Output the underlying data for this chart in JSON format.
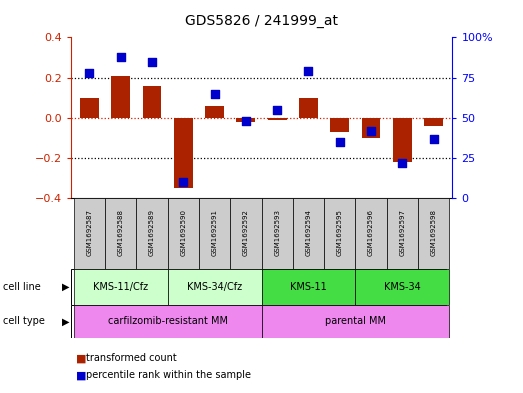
{
  "title": "GDS5826 / 241999_at",
  "samples": [
    "GSM1692587",
    "GSM1692588",
    "GSM1692589",
    "GSM1692590",
    "GSM1692591",
    "GSM1692592",
    "GSM1692593",
    "GSM1692594",
    "GSM1692595",
    "GSM1692596",
    "GSM1692597",
    "GSM1692598"
  ],
  "transformed_count": [
    0.1,
    0.21,
    0.16,
    -0.35,
    0.06,
    -0.02,
    -0.01,
    0.1,
    -0.07,
    -0.1,
    -0.22,
    -0.04
  ],
  "percentile_rank": [
    78,
    88,
    85,
    10,
    65,
    48,
    55,
    79,
    35,
    42,
    22,
    37
  ],
  "cell_line_groups": [
    {
      "label": "KMS-11/Cfz",
      "start": 0,
      "end": 3,
      "color": "#ccffcc"
    },
    {
      "label": "KMS-34/Cfz",
      "start": 3,
      "end": 6,
      "color": "#ccffcc"
    },
    {
      "label": "KMS-11",
      "start": 6,
      "end": 9,
      "color": "#44dd44"
    },
    {
      "label": "KMS-34",
      "start": 9,
      "end": 12,
      "color": "#44dd44"
    }
  ],
  "cell_type_groups": [
    {
      "label": "carfilzomib-resistant MM",
      "start": 0,
      "end": 6,
      "color": "#ee88ee"
    },
    {
      "label": "parental MM",
      "start": 6,
      "end": 12,
      "color": "#ee88ee"
    }
  ],
  "bar_color": "#aa2200",
  "dot_color": "#0000cc",
  "left_ylim": [
    -0.4,
    0.4
  ],
  "right_ylim": [
    0,
    100
  ],
  "left_yticks": [
    -0.4,
    -0.2,
    0.0,
    0.2,
    0.4
  ],
  "right_yticks": [
    0,
    25,
    50,
    75,
    100
  ],
  "right_yticklabels": [
    "0",
    "25",
    "50",
    "75",
    "100%"
  ],
  "background_color": "#ffffff"
}
